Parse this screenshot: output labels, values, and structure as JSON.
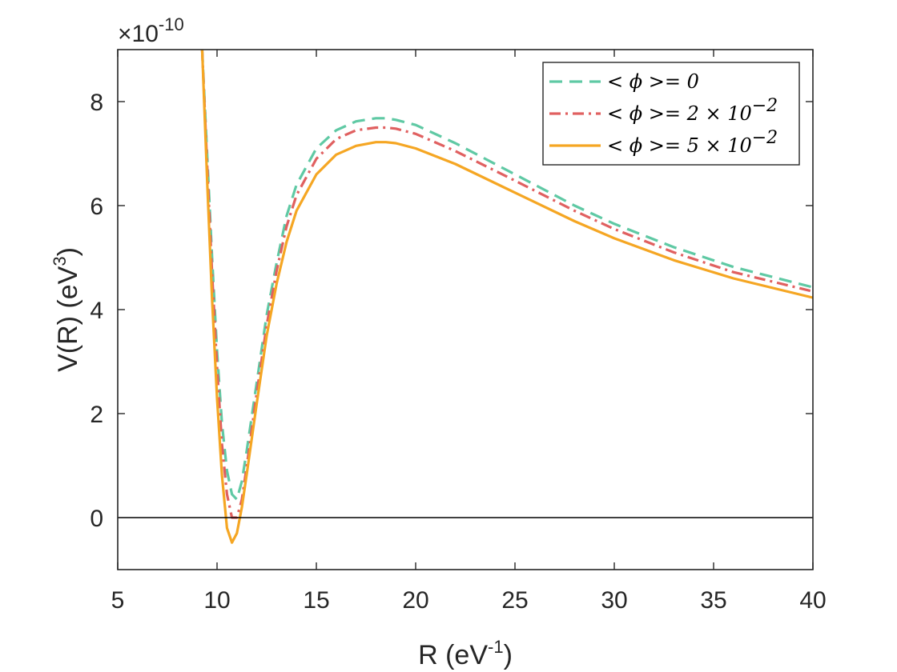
{
  "chart_data": {
    "type": "line",
    "xlabel": "R (eV",
    "xlabel_sup": "-1",
    "xlabel_close": ")",
    "ylabel": "V(R) (eV",
    "ylabel_sup": "3",
    "ylabel_close": ")",
    "y_multiplier": "×10",
    "y_multiplier_sup": "-10",
    "xlim": [
      5,
      40
    ],
    "ylim": [
      -1,
      9
    ],
    "xticks": [
      "5",
      "10",
      "15",
      "20",
      "25",
      "30",
      "35",
      "40"
    ],
    "yticks": [
      "0",
      "2",
      "4",
      "6",
      "8"
    ],
    "xtick_values": [
      5,
      10,
      15,
      20,
      25,
      30,
      35,
      40
    ],
    "ytick_values": [
      0,
      2,
      4,
      6,
      8
    ],
    "grid": false,
    "legend_position": "top-right",
    "reference_line_y": 0,
    "series": [
      {
        "name": "< ϕ >= 0",
        "color": "#5fc9a4",
        "style": "dashed",
        "x": [
          9.25,
          9.5,
          9.75,
          10.0,
          10.25,
          10.5,
          10.75,
          11.0,
          11.25,
          11.5,
          12.0,
          12.5,
          13.0,
          13.5,
          14.0,
          15.0,
          16.0,
          17.0,
          18.0,
          18.5,
          19.0,
          20.0,
          22.0,
          25.0,
          28.0,
          30.0,
          33.0,
          36.0,
          40.0
        ],
        "y": [
          9.0,
          7.0,
          5.0,
          3.2,
          1.8,
          0.9,
          0.45,
          0.35,
          0.7,
          1.3,
          2.6,
          3.9,
          4.9,
          5.8,
          6.4,
          7.1,
          7.45,
          7.62,
          7.68,
          7.68,
          7.65,
          7.55,
          7.2,
          6.6,
          6.0,
          5.65,
          5.2,
          4.82,
          4.43
        ]
      },
      {
        "name": "< ϕ >= 2 × 10",
        "name_sup": "−2",
        "color": "#e06060",
        "style": "dashdot",
        "x": [
          9.25,
          9.5,
          9.75,
          10.0,
          10.25,
          10.5,
          10.75,
          11.0,
          11.25,
          11.5,
          12.0,
          12.5,
          13.0,
          13.5,
          14.0,
          15.0,
          16.0,
          17.0,
          18.0,
          18.5,
          19.0,
          20.0,
          22.0,
          25.0,
          28.0,
          30.0,
          33.0,
          36.0,
          40.0
        ],
        "y": [
          9.0,
          6.8,
          4.7,
          2.9,
          1.4,
          0.45,
          0.0,
          0.0,
          0.35,
          1.0,
          2.4,
          3.7,
          4.75,
          5.6,
          6.2,
          6.9,
          7.28,
          7.45,
          7.5,
          7.5,
          7.48,
          7.38,
          7.05,
          6.48,
          5.9,
          5.55,
          5.1,
          4.72,
          4.35
        ]
      },
      {
        "name": "< ϕ >= 5 × 10",
        "name_sup": "−2",
        "color": "#f5a623",
        "style": "solid",
        "x": [
          9.25,
          9.5,
          9.75,
          10.0,
          10.25,
          10.5,
          10.75,
          11.0,
          11.25,
          11.5,
          12.0,
          12.5,
          13.0,
          13.5,
          14.0,
          15.0,
          16.0,
          17.0,
          18.0,
          18.5,
          19.0,
          20.0,
          22.0,
          25.0,
          28.0,
          30.0,
          33.0,
          36.0,
          40.0
        ],
        "y": [
          9.0,
          6.5,
          4.2,
          2.3,
          0.8,
          -0.2,
          -0.48,
          -0.3,
          0.2,
          0.85,
          2.2,
          3.5,
          4.5,
          5.3,
          5.9,
          6.6,
          6.98,
          7.15,
          7.22,
          7.22,
          7.2,
          7.1,
          6.8,
          6.25,
          5.7,
          5.37,
          4.95,
          4.6,
          4.23
        ]
      }
    ]
  }
}
